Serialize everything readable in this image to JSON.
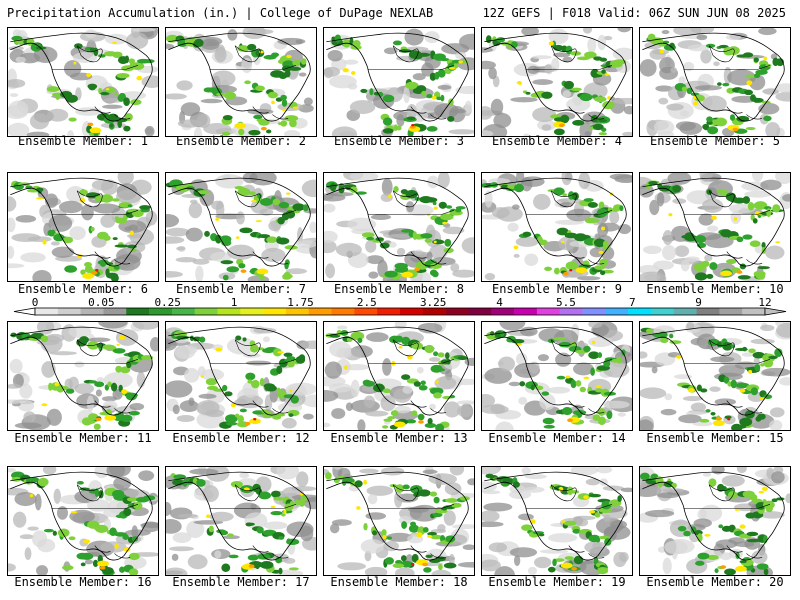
{
  "header": {
    "title": "Precipitation Accumulation (in.) | College of DuPage NEXLAB",
    "valid": "12Z GEFS | F018 Valid: 06Z SUN JUN 08 2025"
  },
  "member_label_prefix": "Ensemble Member: ",
  "members": [
    "1",
    "2",
    "3",
    "4",
    "5",
    "6",
    "7",
    "8",
    "9",
    "10",
    "11",
    "12",
    "13",
    "14",
    "15",
    "16",
    "17",
    "18",
    "19",
    "20"
  ],
  "colorbar": {
    "labels": [
      "0",
      "0.05",
      "0.25",
      "1",
      "1.75",
      "2.5",
      "3.25",
      "4",
      "5.5",
      "7",
      "9",
      "12"
    ],
    "colors": [
      "#e8e8e8",
      "#cfcfcf",
      "#b5b5b5",
      "#9a9a9a",
      "#1f7a1f",
      "#2e9a2e",
      "#47b547",
      "#7fd13b",
      "#b5e61d",
      "#e6f01e",
      "#ffe600",
      "#ffc400",
      "#ff9c00",
      "#ff7a00",
      "#ff4a00",
      "#f01e00",
      "#d40000",
      "#b00000",
      "#900020",
      "#800040",
      "#a0007a",
      "#c800b0",
      "#e040e0",
      "#b070f0",
      "#8090ff",
      "#40b0ff",
      "#00e0ff",
      "#40d0d0",
      "#60b0b0",
      "#808080",
      "#a0a0a0",
      "#c0c0c0"
    ]
  },
  "map_colors": {
    "light_gray": "#d9d9d9",
    "mid_gray": "#b8b8b8",
    "dark_gray": "#8f8f8f",
    "dark_green": "#1f7a1f",
    "green": "#2ea02e",
    "light_green": "#7fd13b",
    "yellow": "#ffe600",
    "orange": "#ff9c00",
    "red": "#e01010"
  }
}
